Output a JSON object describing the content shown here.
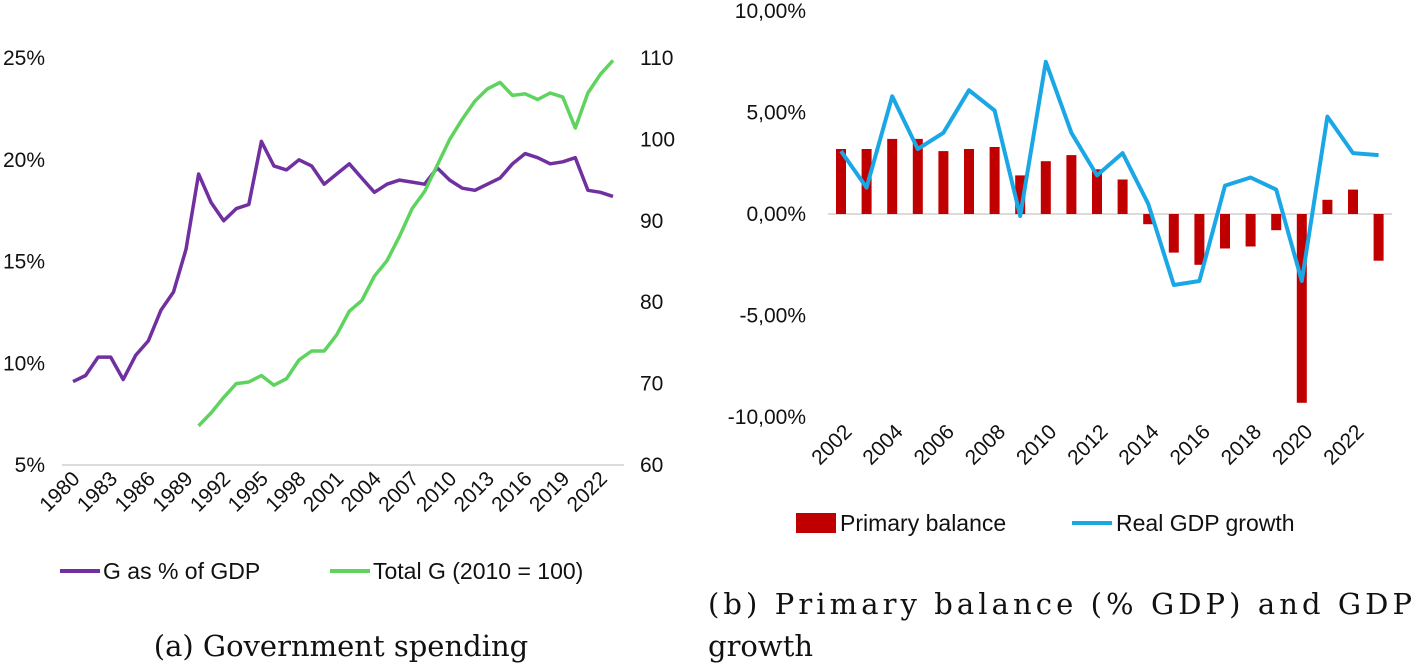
{
  "captions": {
    "a": "(a) Government spending",
    "b_line1": "(b) Primary balance (% GDP) and GDP",
    "b_line2": "growth"
  },
  "chart_data": [
    {
      "type": "line",
      "x": [
        1980,
        1981,
        1982,
        1983,
        1984,
        1985,
        1986,
        1987,
        1988,
        1989,
        1990,
        1991,
        1992,
        1993,
        1994,
        1995,
        1996,
        1997,
        1998,
        1999,
        2000,
        2001,
        2002,
        2003,
        2004,
        2005,
        2006,
        2007,
        2008,
        2009,
        2010,
        2011,
        2012,
        2013,
        2014,
        2015,
        2016,
        2017,
        2018,
        2019,
        2020,
        2021,
        2022,
        2023
      ],
      "x_tick_labels": [
        "1980",
        "1983",
        "1986",
        "1989",
        "1992",
        "1995",
        "1998",
        "2001",
        "2004",
        "2007",
        "2010",
        "2013",
        "2016",
        "2019",
        "2022"
      ],
      "series": [
        {
          "name": "G as % of GDP",
          "axis": "left",
          "color": "#7030a0",
          "values": [
            9.1,
            9.4,
            10.3,
            10.3,
            9.2,
            10.4,
            11.1,
            12.6,
            13.5,
            15.6,
            19.3,
            17.9,
            17.0,
            17.6,
            17.8,
            20.9,
            19.7,
            19.5,
            20.0,
            19.7,
            18.8,
            19.3,
            19.8,
            19.1,
            18.4,
            18.8,
            19.0,
            18.9,
            18.8,
            19.6,
            19.0,
            18.6,
            18.5,
            18.8,
            19.1,
            19.8,
            20.3,
            20.1,
            19.8,
            19.9,
            20.1,
            18.5,
            18.4,
            18.2
          ]
        },
        {
          "name": "Total G (2010 = 100)",
          "axis": "right",
          "color": "#5ed35e",
          "values": [
            null,
            null,
            null,
            null,
            null,
            null,
            null,
            null,
            null,
            null,
            64.8,
            66.4,
            68.3,
            70.0,
            70.2,
            71.0,
            69.8,
            70.6,
            72.9,
            74.0,
            74.0,
            76.0,
            78.9,
            80.2,
            83.2,
            85.1,
            88.1,
            91.5,
            93.6,
            96.8,
            100.0,
            102.5,
            104.7,
            106.2,
            107.0,
            105.4,
            105.6,
            104.9,
            105.7,
            105.2,
            101.4,
            105.7,
            108.0,
            109.7
          ]
        }
      ],
      "ylim_left": [
        5,
        25
      ],
      "y_tick_labels_left": [
        "5%",
        "10%",
        "15%",
        "20%",
        "25%"
      ],
      "ylim_right": [
        60,
        110
      ],
      "y_tick_labels_right": [
        "60",
        "70",
        "80",
        "90",
        "100",
        "110"
      ],
      "legend_placement": "bottom",
      "grid": false
    },
    {
      "type": "bar",
      "categories": [
        2002,
        2003,
        2004,
        2005,
        2006,
        2007,
        2008,
        2009,
        2010,
        2011,
        2012,
        2013,
        2014,
        2015,
        2016,
        2017,
        2018,
        2019,
        2020,
        2021,
        2022,
        2023
      ],
      "x_tick_labels": [
        "2002",
        "2004",
        "2006",
        "2008",
        "2010",
        "2012",
        "2014",
        "2016",
        "2018",
        "2020",
        "2022"
      ],
      "series": [
        {
          "name": "Primary balance",
          "kind": "bar",
          "color": "#c00000",
          "values": [
            3.2,
            3.2,
            3.7,
            3.7,
            3.1,
            3.2,
            3.3,
            1.9,
            2.6,
            2.9,
            2.2,
            1.7,
            -0.5,
            -1.9,
            -2.5,
            -1.7,
            -1.6,
            -0.8,
            -9.3,
            0.7,
            1.2,
            -2.3
          ]
        },
        {
          "name": "Real GDP growth",
          "kind": "line",
          "color": "#1aa7e6",
          "values": [
            3.1,
            1.3,
            5.8,
            3.2,
            4.0,
            6.1,
            5.1,
            -0.1,
            7.5,
            4.0,
            1.9,
            3.0,
            0.5,
            -3.5,
            -3.3,
            1.4,
            1.8,
            1.2,
            -3.3,
            4.8,
            3.0,
            2.9
          ]
        }
      ],
      "ylim": [
        -10,
        10
      ],
      "y_tick_labels": [
        "-10,00%",
        "-5,00%",
        "0,00%",
        "5,00%",
        "10,00%"
      ],
      "legend_placement": "bottom",
      "grid": false
    }
  ]
}
